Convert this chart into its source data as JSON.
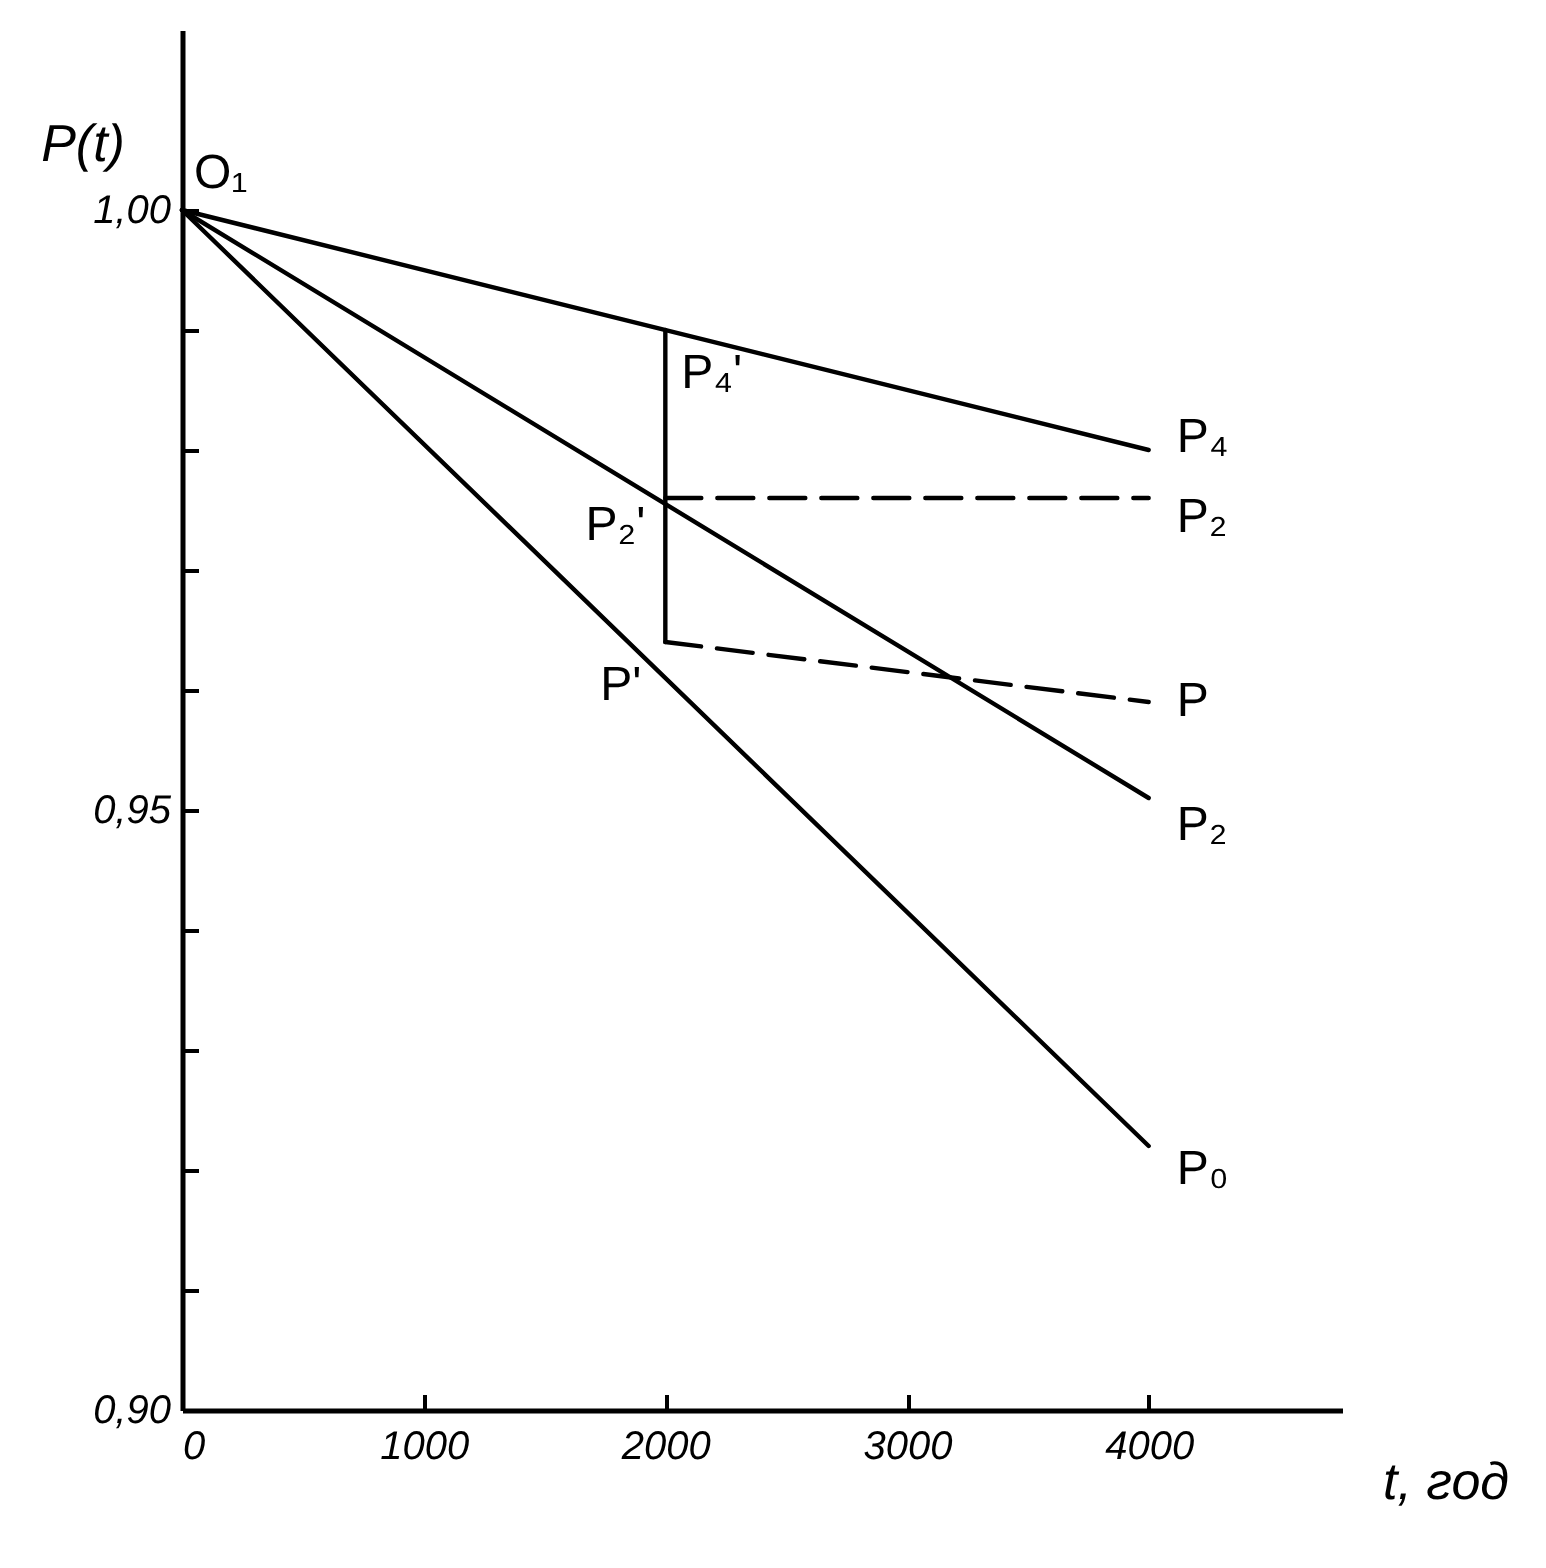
{
  "chart_data": {
    "type": "line",
    "xlabel": "t, год",
    "ylabel": "P(t)",
    "xlim": [
      0,
      4800
    ],
    "ylim": [
      0.9,
      1.015
    ],
    "xticks": [
      0,
      1000,
      2000,
      3000,
      4000
    ],
    "yticks": [
      {
        "value": 0.9,
        "label": "0,90"
      },
      {
        "value": 0.91,
        "label": null
      },
      {
        "value": 0.92,
        "label": null
      },
      {
        "value": 0.93,
        "label": null
      },
      {
        "value": 0.94,
        "label": null
      },
      {
        "value": 0.95,
        "label": "0,95"
      },
      {
        "value": 0.96,
        "label": null
      },
      {
        "value": 0.97,
        "label": null
      },
      {
        "value": 0.98,
        "label": null
      },
      {
        "value": 0.99,
        "label": null
      },
      {
        "value": 1.0,
        "label": "1,00"
      }
    ],
    "grid": false,
    "series": [
      {
        "color": "#000000",
        "x": [
          0,
          4000
        ],
        "values": [
          1.0,
          0.98
        ]
      },
      {
        "color": "#000000",
        "x": [
          0,
          4000
        ],
        "values": [
          1.0,
          0.951
        ]
      },
      {
        "color": "#000000",
        "x": [
          0,
          4000
        ],
        "values": [
          1.0,
          0.922
        ]
      },
      {
        "color": "#000000",
        "x": [
          2000,
          2000
        ],
        "values": [
          0.99,
          0.964
        ]
      },
      {
        "color": "#000000",
        "x": [
          2000,
          4000
        ],
        "values": [
          0.976,
          0.976
        ],
        "line_style": "dashed"
      },
      {
        "color": "#000000",
        "x": [
          2000,
          4000
        ],
        "values": [
          0.964,
          0.959
        ],
        "line_style": "dashed"
      }
    ],
    "annotations": [
      {
        "text": "O₁",
        "x": 0,
        "y": 1.0
      },
      {
        "text": "P₄'",
        "x": 2000,
        "y": 0.99
      },
      {
        "text": "P₂'",
        "x": 2000,
        "y": 0.976
      },
      {
        "text": "P'",
        "x": 2000,
        "y": 0.964
      },
      {
        "text": "P₄",
        "x": 4000,
        "y": 0.98
      },
      {
        "text": "P₂",
        "x": 4000,
        "y": 0.976
      },
      {
        "text": "P",
        "x": 4000,
        "y": 0.959
      },
      {
        "text": "P₂",
        "x": 4000,
        "y": 0.951
      },
      {
        "text": "P₀",
        "x": 4000,
        "y": 0.922
      }
    ]
  }
}
